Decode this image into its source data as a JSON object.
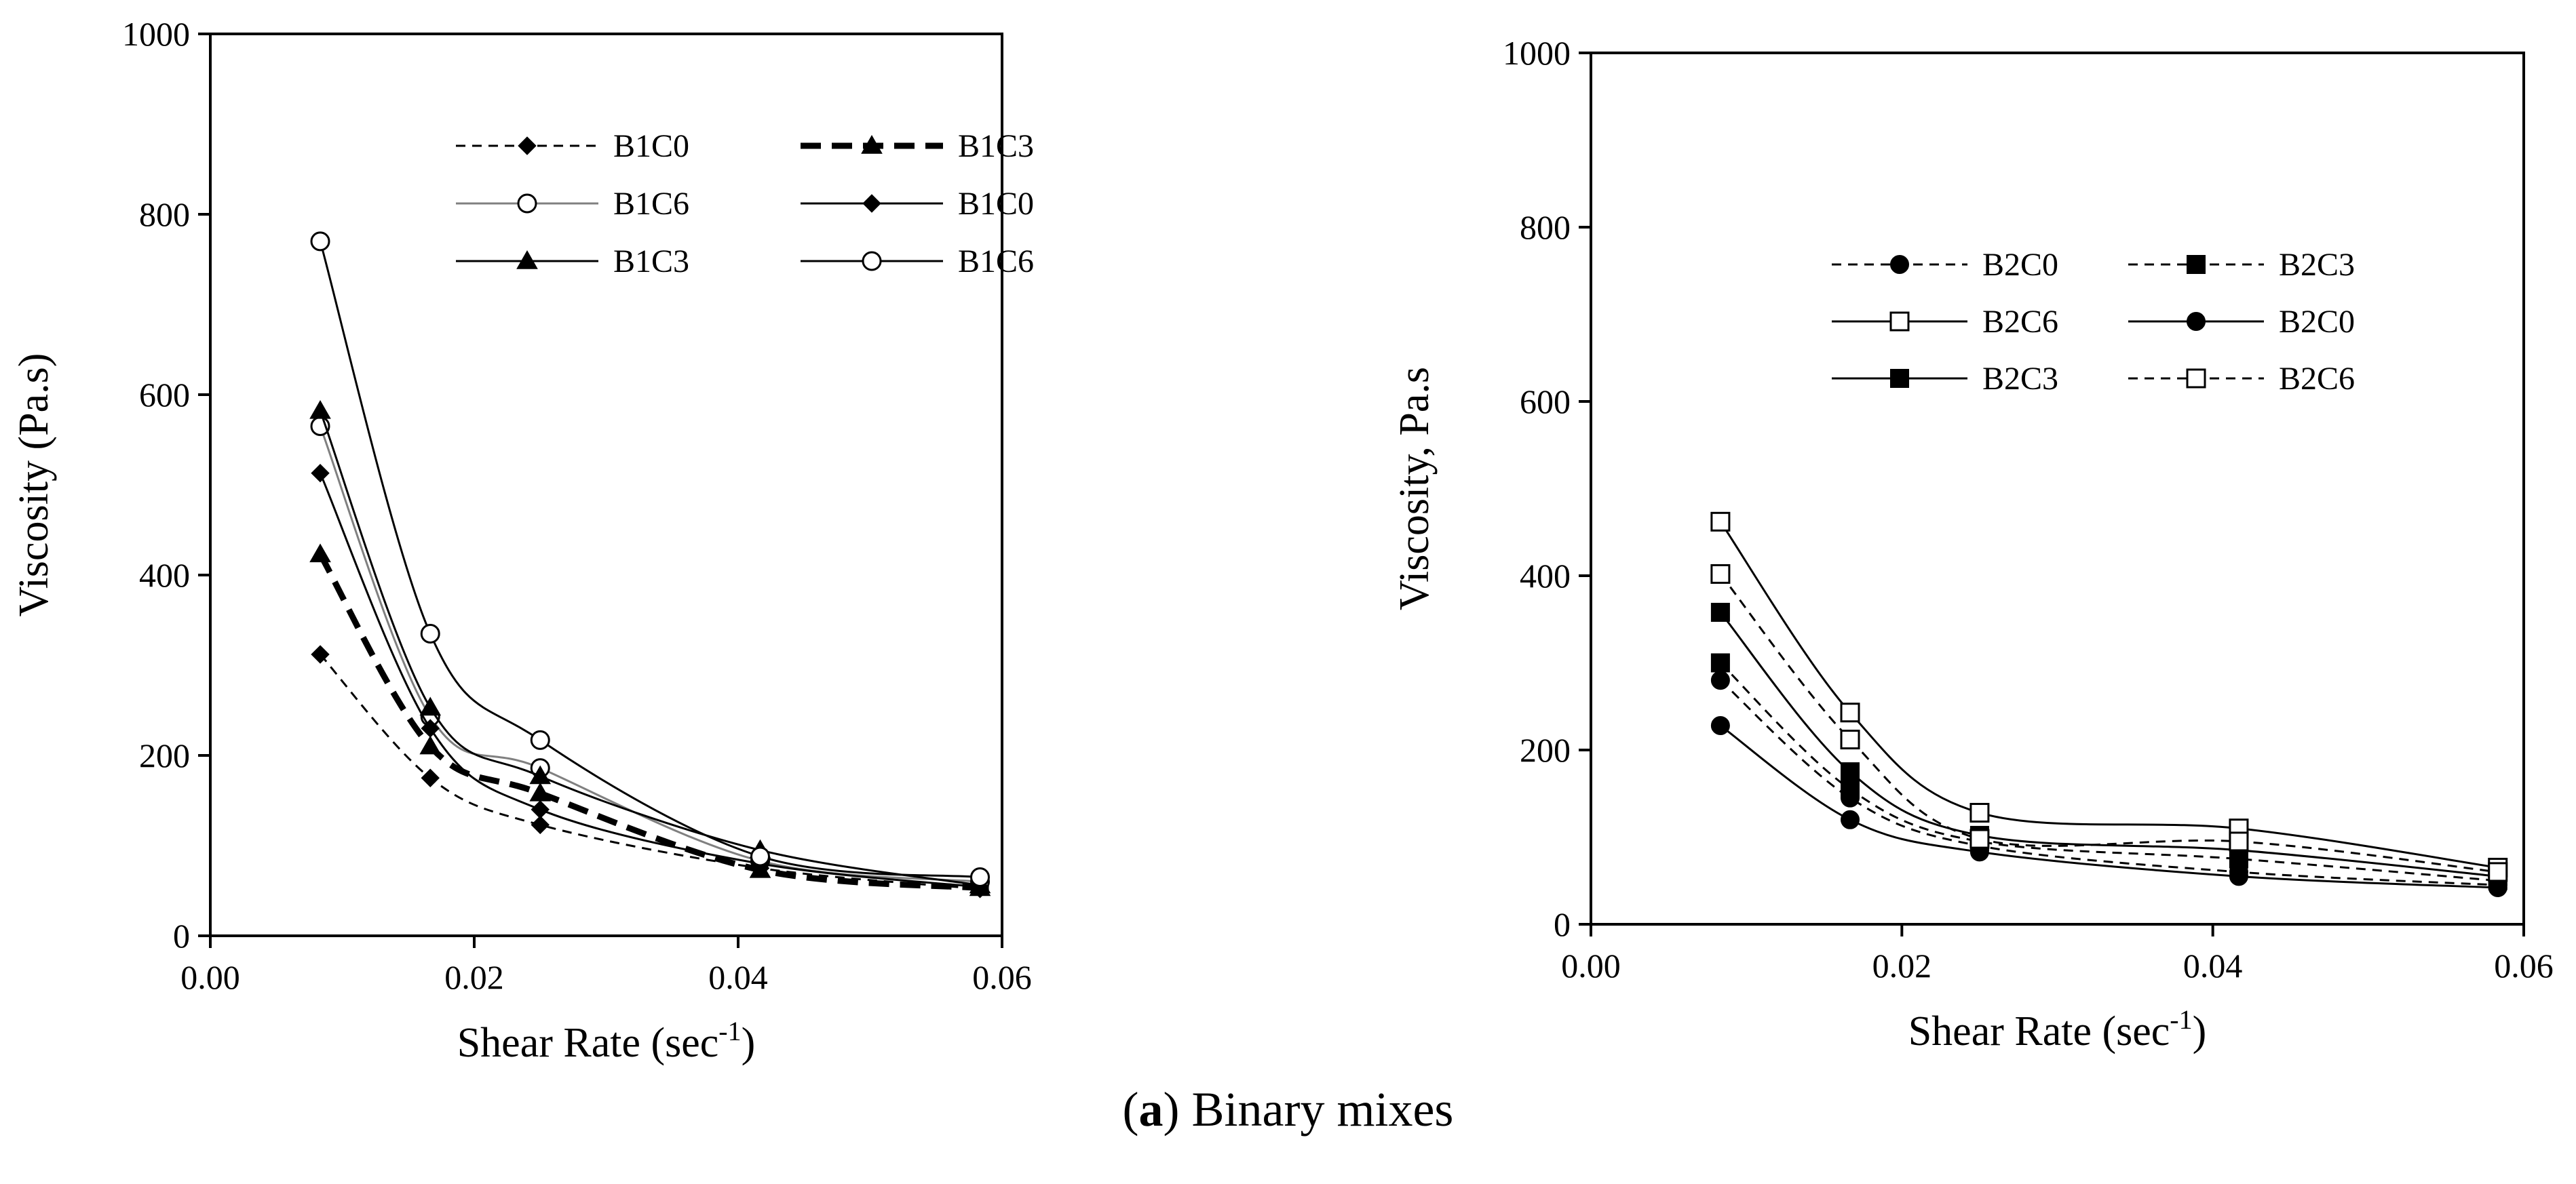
{
  "caption": {
    "panel": "a",
    "text": "Binary mixes"
  },
  "chart_data": [
    {
      "type": "line",
      "panel": "left",
      "title": "",
      "xlabel": "Shear Rate (sec",
      "xlabel_sup": "-1",
      "xlabel_end": ")",
      "ylabel": "Viscosity (Pa.s)",
      "xlim": [
        0,
        0.06
      ],
      "ylim": [
        0,
        1000
      ],
      "xticks": [
        "0.00",
        "0.02",
        "0.04",
        "0.06"
      ],
      "xtick_values": [
        0,
        0.02,
        0.04,
        0.06
      ],
      "yticks": [
        "0",
        "200",
        "400",
        "600",
        "800",
        "1000"
      ],
      "ytick_values": [
        0,
        200,
        400,
        600,
        800,
        1000
      ],
      "grid": false,
      "legend": "top-right",
      "x": [
        0.00833,
        0.01667,
        0.025,
        0.04167,
        0.05833
      ],
      "series": [
        {
          "name": "B1C0",
          "marker": "diamond",
          "line": "dashed",
          "color": "#000000",
          "values": [
            312,
            175,
            123,
            75,
            52
          ]
        },
        {
          "name": "B1C3",
          "marker": "triangle",
          "line": "bold-dashed",
          "color": "#000000",
          "values": [
            423,
            210,
            158,
            73,
            53
          ]
        },
        {
          "name": "B1C6",
          "marker": "circle-open",
          "line": "solid-gray",
          "color": "#808080",
          "values": [
            565,
            243,
            186,
            83,
            60
          ]
        },
        {
          "name": "B1C0",
          "marker": "diamond",
          "line": "solid",
          "color": "#000000",
          "values": [
            513,
            230,
            140,
            80,
            54
          ]
        },
        {
          "name": "B1C3",
          "marker": "triangle",
          "line": "solid",
          "color": "#000000",
          "values": [
            582,
            253,
            177,
            95,
            56
          ]
        },
        {
          "name": "B1C6",
          "marker": "circle-open",
          "line": "solid",
          "color": "#000000",
          "values": [
            770,
            335,
            217,
            88,
            65
          ]
        }
      ]
    },
    {
      "type": "line",
      "panel": "right",
      "title": "",
      "xlabel": "Shear Rate (sec",
      "xlabel_sup": "-1",
      "xlabel_end": ")",
      "ylabel": "Viscosity, Pa.s",
      "xlim": [
        0,
        0.06
      ],
      "ylim": [
        0,
        1000
      ],
      "xticks": [
        "0.00",
        "0.02",
        "0.04",
        "0.06"
      ],
      "xtick_values": [
        0,
        0.02,
        0.04,
        0.06
      ],
      "yticks": [
        "0",
        "200",
        "400",
        "600",
        "800",
        "1000"
      ],
      "ytick_values": [
        0,
        200,
        400,
        600,
        800,
        1000
      ],
      "grid": false,
      "legend": "center-right",
      "x": [
        0.00833,
        0.01667,
        0.025,
        0.04167,
        0.05833
      ],
      "series": [
        {
          "name": "B2C0",
          "marker": "circle-filled",
          "line": "dashed",
          "color": "#000000",
          "values": [
            280,
            145,
            90,
            60,
            45
          ]
        },
        {
          "name": "B2C3",
          "marker": "square-filled",
          "line": "dashed",
          "color": "#000000",
          "values": [
            300,
            155,
            95,
            75,
            50
          ]
        },
        {
          "name": "B2C6",
          "marker": "square-open",
          "line": "solid",
          "color": "#000000",
          "values": [
            462,
            243,
            128,
            110,
            65
          ]
        },
        {
          "name": "B2C0",
          "marker": "circle-filled",
          "line": "solid",
          "color": "#000000",
          "values": [
            228,
            120,
            83,
            55,
            42
          ]
        },
        {
          "name": "B2C3",
          "marker": "square-filled",
          "line": "solid",
          "color": "#000000",
          "values": [
            358,
            175,
            102,
            85,
            55
          ]
        },
        {
          "name": "B2C6",
          "marker": "square-open",
          "line": "dashed",
          "color": "#000000",
          "values": [
            402,
            212,
            98,
            95,
            60
          ]
        }
      ]
    }
  ]
}
